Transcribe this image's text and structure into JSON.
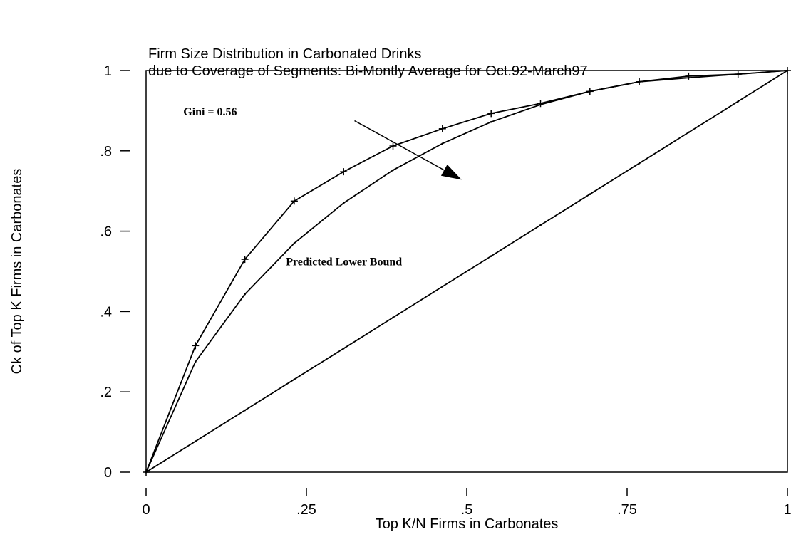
{
  "chart_data": {
    "type": "line",
    "title_lines": [
      "Firm Size Distribution in Carbonated Drinks",
      "due to Coverage of Segments: Bi-Montly Average for Oct.92-March97"
    ],
    "xlabel": "Top K/N Firms in Carbonates",
    "ylabel": "Ck of Top K Firms in Carbonates",
    "xlim": [
      0,
      1
    ],
    "ylim": [
      0,
      1
    ],
    "x_ticks": [
      {
        "value": 0,
        "label": "0"
      },
      {
        "value": 0.25,
        "label": ".25"
      },
      {
        "value": 0.5,
        "label": ".5"
      },
      {
        "value": 0.75,
        "label": ".75"
      },
      {
        "value": 1,
        "label": "1"
      }
    ],
    "y_ticks": [
      {
        "value": 0,
        "label": "0"
      },
      {
        "value": 0.2,
        "label": ".2"
      },
      {
        "value": 0.4,
        "label": ".4"
      },
      {
        "value": 0.6,
        "label": ".6"
      },
      {
        "value": 0.8,
        "label": ".8"
      },
      {
        "value": 1,
        "label": "1"
      }
    ],
    "series": [
      {
        "marker": "plus",
        "x": [
          0,
          0.077,
          0.154,
          0.231,
          0.308,
          0.385,
          0.462,
          0.538,
          0.615,
          0.692,
          0.769,
          0.846,
          0.923,
          1
        ],
        "y": [
          0,
          0.315,
          0.53,
          0.675,
          0.748,
          0.812,
          0.855,
          0.893,
          0.918,
          0.948,
          0.972,
          0.986,
          0.991,
          1
        ]
      },
      {
        "marker": "dot",
        "x": [
          0,
          0.077,
          0.154,
          0.231,
          0.308,
          0.385,
          0.462,
          0.538,
          0.615,
          0.692,
          0.769,
          0.846,
          0.923,
          1
        ],
        "y": [
          0,
          0.275,
          0.443,
          0.57,
          0.67,
          0.752,
          0.818,
          0.872,
          0.915,
          0.948,
          0.972,
          0.982,
          0.991,
          1
        ]
      },
      {
        "marker": "dot",
        "x": [
          0,
          0.077,
          0.154,
          0.231,
          0.308,
          0.385,
          0.462,
          0.538,
          0.615,
          0.692,
          0.769,
          0.846,
          0.923,
          1
        ],
        "y": [
          0,
          0.077,
          0.154,
          0.231,
          0.308,
          0.385,
          0.462,
          0.538,
          0.615,
          0.692,
          0.769,
          0.846,
          0.923,
          1
        ]
      }
    ],
    "annotations": [
      {
        "text": "Gini = 0.56",
        "x": 0.058,
        "y": 0.888,
        "arrow_from": [
          0.325,
          0.875
        ],
        "arrow_to": [
          0.492,
          0.728
        ]
      },
      {
        "text": "Predicted Lower Bound",
        "x": 0.218,
        "y": 0.515
      }
    ],
    "grid": false,
    "legend": "none"
  }
}
